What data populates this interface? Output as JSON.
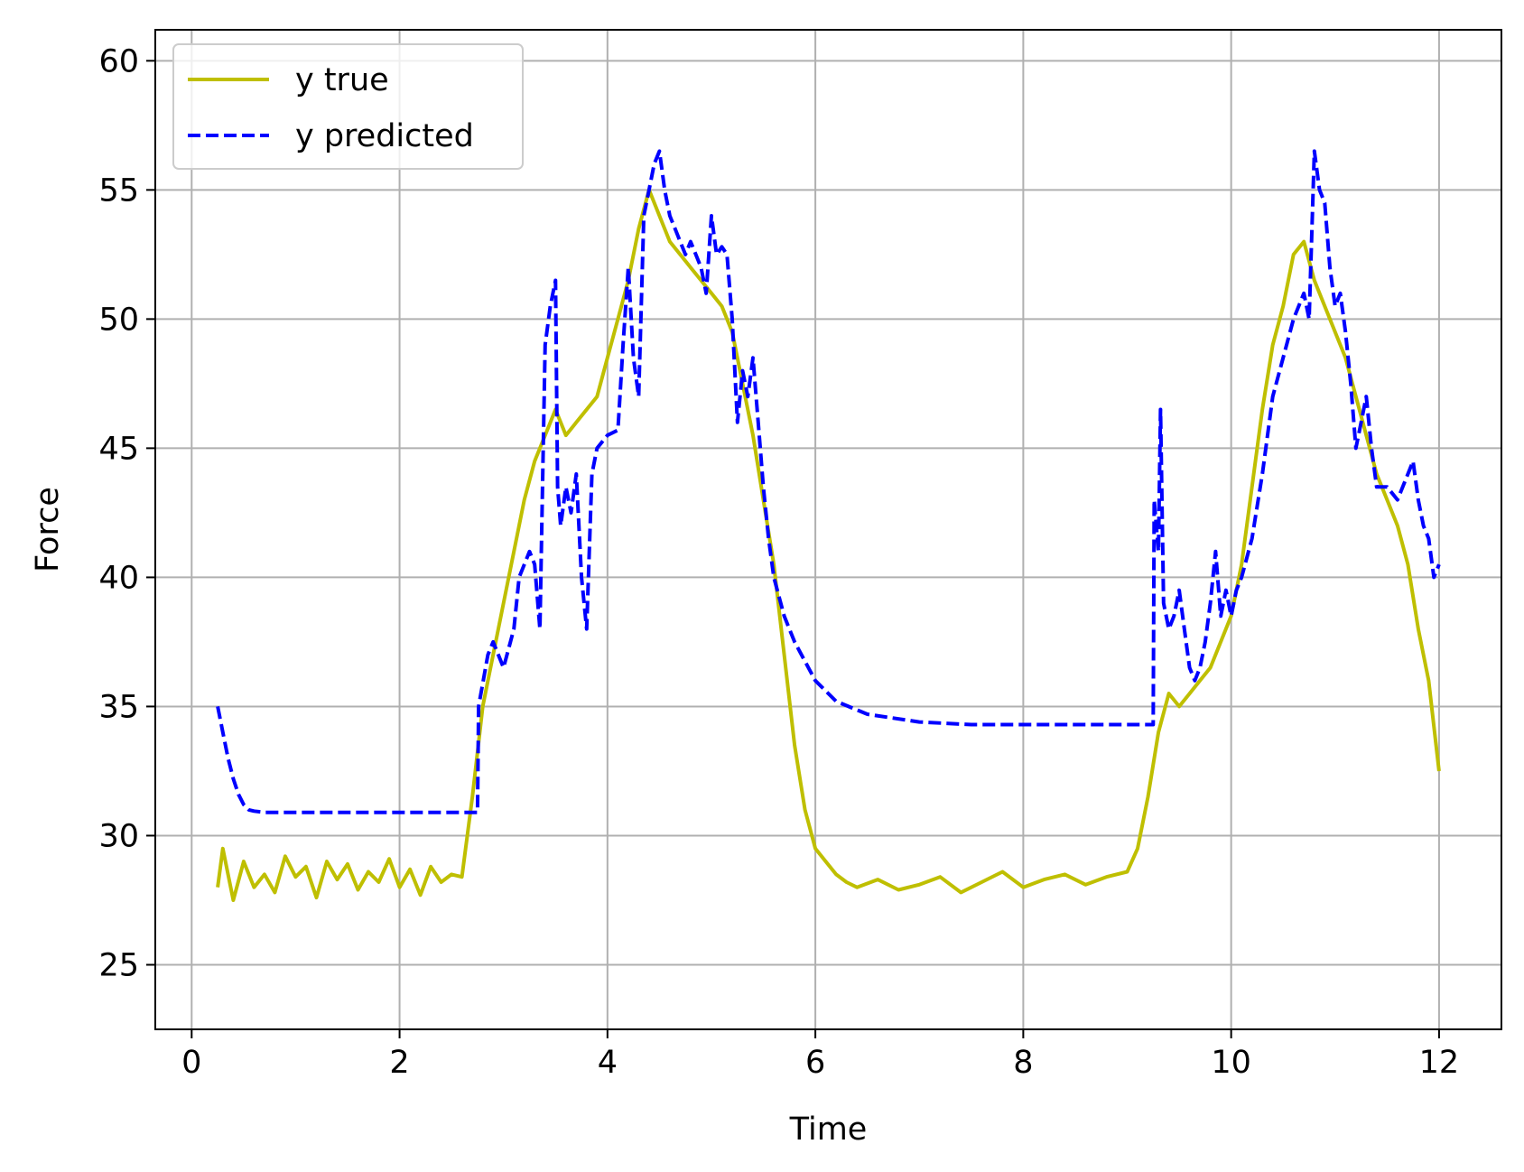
{
  "chart_data": {
    "type": "line",
    "title": "",
    "xlabel": "Time",
    "ylabel": "Force",
    "xlim": [
      -0.35,
      12.6
    ],
    "ylim": [
      22.5,
      61.2
    ],
    "xticks": [
      0,
      2,
      4,
      6,
      8,
      10,
      12
    ],
    "yticks": [
      25,
      30,
      35,
      40,
      45,
      50,
      55,
      60
    ],
    "grid": true,
    "legend_position": "top-left",
    "series": [
      {
        "name": "y true",
        "style": "solid",
        "color": "#bfbf00",
        "x": [
          0.25,
          0.3,
          0.4,
          0.5,
          0.6,
          0.7,
          0.8,
          0.9,
          1.0,
          1.1,
          1.2,
          1.3,
          1.4,
          1.5,
          1.6,
          1.7,
          1.8,
          1.9,
          2.0,
          2.1,
          2.2,
          2.3,
          2.4,
          2.5,
          2.6,
          2.7,
          2.8,
          2.9,
          3.0,
          3.1,
          3.2,
          3.3,
          3.4,
          3.5,
          3.6,
          3.7,
          3.8,
          3.9,
          4.0,
          4.1,
          4.2,
          4.3,
          4.4,
          4.5,
          4.6,
          4.7,
          4.8,
          4.9,
          5.0,
          5.1,
          5.2,
          5.3,
          5.4,
          5.5,
          5.6,
          5.7,
          5.8,
          5.9,
          6.0,
          6.1,
          6.2,
          6.3,
          6.4,
          6.6,
          6.8,
          7.0,
          7.2,
          7.4,
          7.6,
          7.8,
          8.0,
          8.2,
          8.4,
          8.6,
          8.8,
          9.0,
          9.1,
          9.2,
          9.3,
          9.4,
          9.5,
          9.6,
          9.7,
          9.8,
          9.9,
          10.0,
          10.1,
          10.2,
          10.3,
          10.4,
          10.5,
          10.6,
          10.7,
          10.8,
          10.9,
          11.0,
          11.1,
          11.2,
          11.3,
          11.4,
          11.5,
          11.6,
          11.7,
          11.8,
          11.9,
          12.0
        ],
        "y": [
          28.0,
          29.5,
          27.5,
          29.0,
          28.0,
          28.5,
          27.8,
          29.2,
          28.4,
          28.8,
          27.6,
          29.0,
          28.3,
          28.9,
          27.9,
          28.6,
          28.2,
          29.1,
          28.0,
          28.7,
          27.7,
          28.8,
          28.2,
          28.5,
          28.4,
          31.5,
          35.0,
          37.0,
          39.0,
          41.0,
          43.0,
          44.5,
          45.5,
          46.5,
          45.5,
          46.0,
          46.5,
          47.0,
          48.5,
          50.0,
          51.5,
          53.5,
          55.0,
          54.0,
          53.0,
          52.5,
          52.0,
          51.5,
          51.0,
          50.5,
          49.5,
          47.5,
          45.5,
          43.0,
          40.5,
          37.0,
          33.5,
          31.0,
          29.5,
          29.0,
          28.5,
          28.2,
          28.0,
          28.3,
          27.9,
          28.1,
          28.4,
          27.8,
          28.2,
          28.6,
          28.0,
          28.3,
          28.5,
          28.1,
          28.4,
          28.6,
          29.5,
          31.5,
          34.0,
          35.5,
          35.0,
          35.5,
          36.0,
          36.5,
          37.5,
          38.5,
          40.5,
          43.5,
          46.5,
          49.0,
          50.5,
          52.5,
          53.0,
          51.5,
          50.5,
          49.5,
          48.5,
          47.0,
          45.5,
          44.0,
          43.0,
          42.0,
          40.5,
          38.0,
          36.0,
          32.5
        ]
      },
      {
        "name": "y predicted",
        "style": "dashed",
        "color": "#0000ff",
        "x": [
          0.25,
          0.3,
          0.35,
          0.4,
          0.45,
          0.5,
          0.55,
          0.6,
          0.7,
          0.8,
          1.0,
          1.5,
          2.0,
          2.5,
          2.75,
          2.76,
          2.85,
          2.9,
          3.0,
          3.1,
          3.15,
          3.25,
          3.3,
          3.35,
          3.4,
          3.45,
          3.5,
          3.52,
          3.55,
          3.6,
          3.65,
          3.7,
          3.75,
          3.8,
          3.85,
          3.9,
          4.0,
          4.1,
          4.15,
          4.2,
          4.25,
          4.3,
          4.35,
          4.4,
          4.45,
          4.5,
          4.55,
          4.6,
          4.65,
          4.7,
          4.75,
          4.8,
          4.85,
          4.9,
          4.95,
          5.0,
          5.05,
          5.1,
          5.15,
          5.2,
          5.25,
          5.3,
          5.35,
          5.4,
          5.45,
          5.5,
          5.55,
          5.6,
          5.7,
          5.8,
          6.0,
          6.2,
          6.5,
          7.0,
          7.5,
          8.0,
          8.5,
          9.0,
          9.25,
          9.26,
          9.3,
          9.32,
          9.35,
          9.4,
          9.45,
          9.5,
          9.55,
          9.6,
          9.65,
          9.7,
          9.75,
          9.8,
          9.85,
          9.9,
          9.95,
          10.0,
          10.05,
          10.1,
          10.2,
          10.3,
          10.4,
          10.5,
          10.6,
          10.7,
          10.75,
          10.8,
          10.85,
          10.9,
          10.95,
          11.0,
          11.05,
          11.1,
          11.15,
          11.2,
          11.25,
          11.3,
          11.35,
          11.4,
          11.5,
          11.6,
          11.7,
          11.75,
          11.8,
          11.85,
          11.9,
          11.95,
          12.0
        ],
        "y": [
          35.0,
          34.0,
          33.0,
          32.2,
          31.6,
          31.2,
          31.0,
          30.95,
          30.9,
          30.9,
          30.9,
          30.9,
          30.9,
          30.9,
          30.9,
          35.0,
          37.0,
          37.5,
          36.5,
          38.0,
          40.0,
          41.0,
          40.5,
          38.0,
          49.0,
          50.5,
          51.5,
          43.5,
          42.0,
          43.5,
          42.5,
          44.0,
          40.0,
          38.0,
          44.0,
          45.0,
          45.5,
          45.7,
          49.0,
          52.0,
          48.5,
          47.0,
          54.0,
          55.0,
          56.0,
          56.5,
          55.0,
          54.0,
          53.5,
          53.0,
          52.5,
          53.0,
          52.5,
          52.0,
          51.0,
          54.0,
          52.5,
          52.8,
          52.5,
          50.0,
          46.0,
          48.0,
          47.0,
          48.5,
          46.0,
          43.5,
          41.5,
          40.0,
          38.5,
          37.5,
          36.0,
          35.2,
          34.7,
          34.4,
          34.3,
          34.3,
          34.3,
          34.3,
          34.3,
          43.0,
          41.0,
          46.5,
          39.0,
          38.0,
          38.5,
          39.5,
          38.0,
          36.5,
          36.0,
          36.5,
          37.5,
          39.0,
          41.0,
          38.5,
          39.5,
          38.5,
          39.5,
          40.0,
          41.5,
          44.0,
          47.0,
          48.5,
          50.0,
          51.0,
          50.0,
          56.5,
          55.0,
          54.5,
          52.0,
          50.5,
          51.0,
          49.5,
          47.5,
          45.0,
          46.0,
          47.0,
          45.0,
          43.5,
          43.5,
          43.0,
          44.0,
          44.5,
          43.0,
          42.0,
          41.5,
          40.0,
          40.5
        ]
      }
    ]
  }
}
